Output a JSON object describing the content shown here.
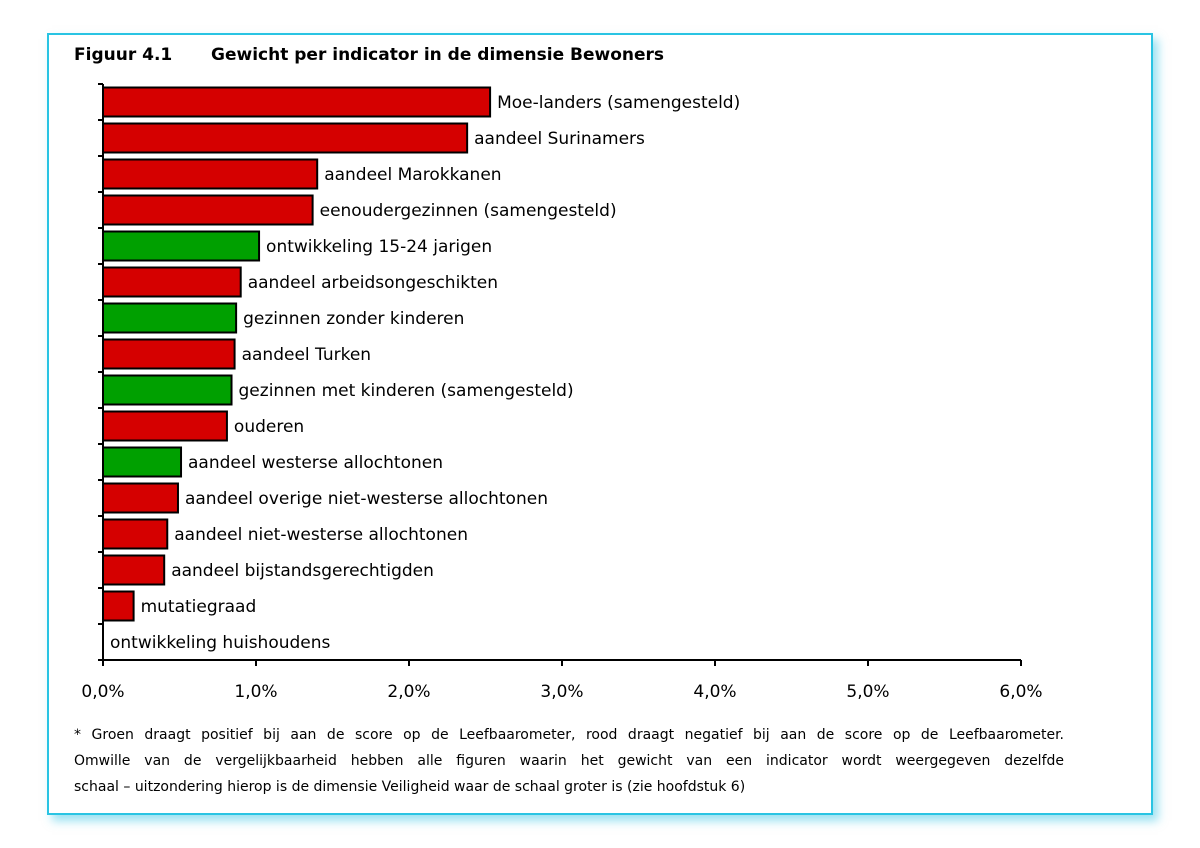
{
  "figure": {
    "number": "Figuur 4.1",
    "title": "Gewicht per indicator in de dimensie Bewoners"
  },
  "colors": {
    "negative": "#d50000",
    "positive": "#00a000",
    "frame": "#29c4e3"
  },
  "chart_data": {
    "type": "bar",
    "orientation": "horizontal",
    "xlim": [
      0,
      6
    ],
    "tick_labels": [
      "0,0%",
      "1,0%",
      "2,0%",
      "3,0%",
      "4,0%",
      "5,0%",
      "6,0%"
    ],
    "legend": "none",
    "grid": false,
    "bars": [
      {
        "label": "Moe-landers (samengesteld)",
        "value": 2.53,
        "effect": "negatief"
      },
      {
        "label": "aandeel Surinamers",
        "value": 2.38,
        "effect": "negatief"
      },
      {
        "label": "aandeel Marokkanen",
        "value": 1.4,
        "effect": "negatief"
      },
      {
        "label": "eenoudergezinnen (samengesteld)",
        "value": 1.37,
        "effect": "negatief"
      },
      {
        "label": "ontwikkeling 15-24 jarigen",
        "value": 1.02,
        "effect": "positief"
      },
      {
        "label": "aandeel arbeidsongeschikten",
        "value": 0.9,
        "effect": "negatief"
      },
      {
        "label": "gezinnen zonder kinderen",
        "value": 0.87,
        "effect": "positief"
      },
      {
        "label": "aandeel Turken",
        "value": 0.86,
        "effect": "negatief"
      },
      {
        "label": "gezinnen met kinderen (samengesteld)",
        "value": 0.84,
        "effect": "positief"
      },
      {
        "label": "ouderen",
        "value": 0.81,
        "effect": "negatief"
      },
      {
        "label": "aandeel westerse allochtonen",
        "value": 0.51,
        "effect": "positief"
      },
      {
        "label": "aandeel overige niet-westerse allochtonen",
        "value": 0.49,
        "effect": "negatief"
      },
      {
        "label": "aandeel niet-westerse allochtonen",
        "value": 0.42,
        "effect": "negatief"
      },
      {
        "label": "aandeel bijstandsgerechtigden",
        "value": 0.4,
        "effect": "negatief"
      },
      {
        "label": "mutatiegraad",
        "value": 0.2,
        "effect": "negatief"
      },
      {
        "label": "ontwikkeling huishoudens",
        "value": 0.0,
        "effect": "none"
      }
    ]
  },
  "footnote": {
    "line1": "* Groen draagt positief bij aan de score op de Leefbaarometer, rood draagt negatief bij aan de score op de Leefbaarometer.",
    "line2": "Omwille van de vergelijkbaarheid hebben alle figuren waarin het gewicht van een indicator wordt weergegeven dezelfde",
    "line3": "schaal – uitzondering hierop is de dimensie Veiligheid waar de schaal groter is (zie hoofdstuk 6)"
  }
}
